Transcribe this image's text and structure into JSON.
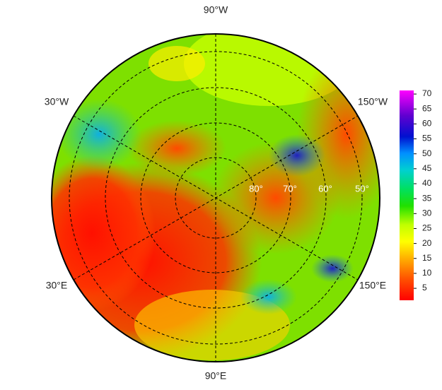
{
  "map": {
    "longitude_labels": [
      "90°W",
      "30°W",
      "150°W",
      "30°E",
      "150°E",
      "90°E"
    ],
    "latitude_labels": [
      "80°",
      "70°",
      "60°",
      "50°"
    ]
  },
  "colorbar": {
    "range": [
      1,
      71.2
    ],
    "ticks": [
      5,
      10,
      15,
      20,
      25,
      30,
      35,
      40,
      45,
      50,
      55,
      60,
      65,
      70
    ]
  }
}
